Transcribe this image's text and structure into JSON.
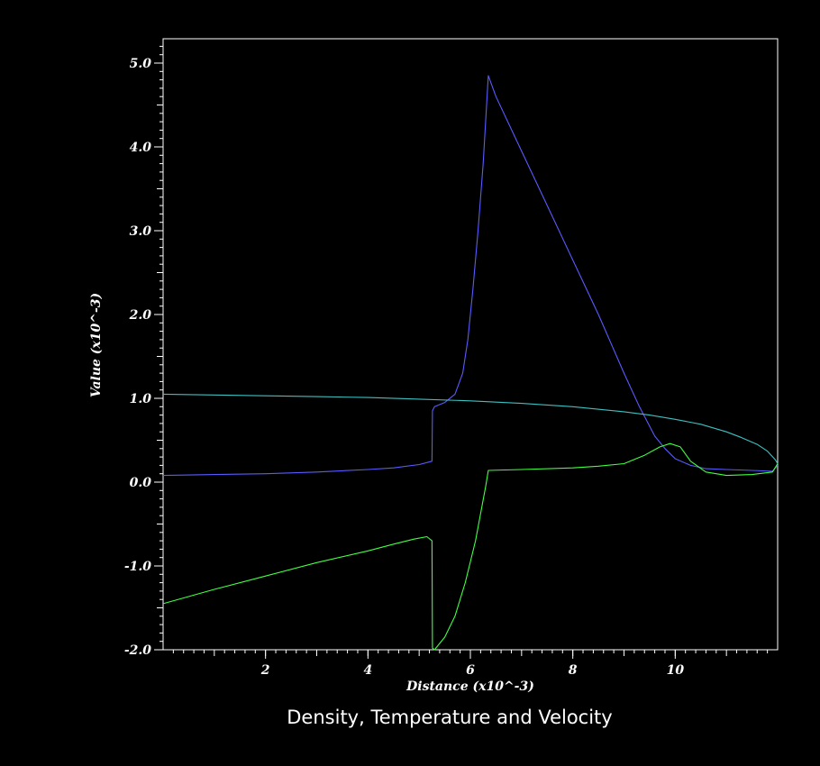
{
  "chart_data": {
    "type": "line",
    "title": "Density, Temperature and Velocity",
    "xlabel": "Distance (x10^-3)",
    "ylabel": "Value (x10^-3)",
    "xlim": [
      0,
      12
    ],
    "ylim": [
      -2.0,
      5.25
    ],
    "x_ticks": [
      2,
      4,
      6,
      8,
      10
    ],
    "x_tick_labels": [
      "2",
      "4",
      "6",
      "8",
      "10"
    ],
    "y_ticks": [
      -2.0,
      -1.0,
      0.0,
      1.0,
      2.0,
      3.0,
      4.0,
      5.0
    ],
    "y_tick_labels": [
      "-2.0",
      "-1.0",
      "0.0",
      "1.0",
      "2.0",
      "3.0",
      "4.0",
      "5.0"
    ],
    "background": "#000000",
    "axis_color": "#ffffff",
    "series": [
      {
        "color": "#5a5aff",
        "x": [
          0.0,
          1.0,
          2.0,
          3.0,
          4.0,
          4.5,
          5.0,
          5.25,
          5.26,
          5.3,
          5.5,
          5.7,
          5.85,
          5.95,
          6.05,
          6.15,
          6.25,
          6.35,
          6.5,
          7.0,
          7.5,
          8.0,
          8.5,
          9.0,
          9.3,
          9.6,
          9.8,
          10.0,
          10.3,
          10.6,
          11.0,
          11.5,
          11.9,
          12.0
        ],
        "y": [
          0.08,
          0.09,
          0.1,
          0.12,
          0.15,
          0.17,
          0.21,
          0.25,
          0.85,
          0.9,
          0.95,
          1.05,
          1.3,
          1.7,
          2.3,
          3.0,
          3.8,
          4.85,
          4.6,
          3.95,
          3.3,
          2.65,
          2.0,
          1.3,
          0.9,
          0.55,
          0.4,
          0.28,
          0.2,
          0.16,
          0.15,
          0.14,
          0.13,
          0.2
        ]
      },
      {
        "color": "#3fc0c0",
        "x": [
          0.0,
          1.0,
          2.0,
          3.0,
          4.0,
          5.0,
          6.0,
          7.0,
          8.0,
          9.0,
          9.5,
          10.0,
          10.5,
          11.0,
          11.3,
          11.6,
          11.8,
          11.95,
          12.0
        ],
        "y": [
          1.05,
          1.04,
          1.03,
          1.02,
          1.01,
          0.99,
          0.97,
          0.94,
          0.9,
          0.84,
          0.8,
          0.75,
          0.69,
          0.6,
          0.53,
          0.45,
          0.37,
          0.27,
          0.22
        ]
      },
      {
        "color": "#40ff40",
        "x": [
          0.0,
          1.0,
          2.0,
          3.0,
          4.0,
          4.5,
          4.9,
          5.15,
          5.25,
          5.26,
          5.3,
          5.5,
          5.7,
          5.9,
          6.1,
          6.3,
          6.35,
          7.0,
          8.0,
          8.5,
          9.0,
          9.4,
          9.7,
          9.9,
          10.1,
          10.3,
          10.6,
          11.0,
          11.5,
          11.9,
          12.0
        ],
        "y": [
          -1.45,
          -1.28,
          -1.12,
          -0.96,
          -0.82,
          -0.74,
          -0.68,
          -0.65,
          -0.7,
          -1.98,
          -2.0,
          -1.85,
          -1.6,
          -1.2,
          -0.7,
          -0.05,
          0.14,
          0.15,
          0.17,
          0.19,
          0.22,
          0.32,
          0.42,
          0.46,
          0.42,
          0.25,
          0.12,
          0.08,
          0.09,
          0.12,
          0.22
        ]
      }
    ]
  }
}
